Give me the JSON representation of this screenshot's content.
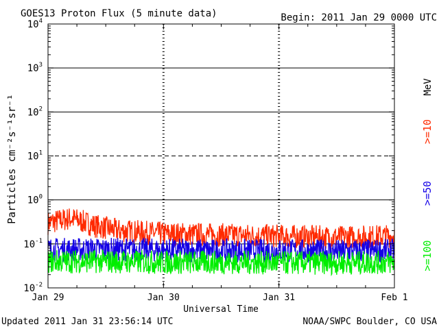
{
  "chart_data": {
    "type": "line",
    "title": "GOES13 Proton Flux (5 minute data)",
    "begin": "Begin: 2011 Jan 29 0000 UTC",
    "xlabel": "Universal Time",
    "ylabel": "Particles cm⁻²s⁻¹sr⁻¹",
    "yscale": "log",
    "ylim": [
      0.01,
      10000
    ],
    "yticks": [
      {
        "base": "10",
        "exp": "4"
      },
      {
        "base": "10",
        "exp": "3"
      },
      {
        "base": "10",
        "exp": "2"
      },
      {
        "base": "10",
        "exp": "1"
      },
      {
        "base": "10",
        "exp": "0"
      },
      {
        "base": "10",
        "exp": "-1"
      },
      {
        "base": "10",
        "exp": "-2"
      }
    ],
    "xlim_days": [
      0,
      3
    ],
    "xticks": [
      {
        "day": 0,
        "label": "Jan 29"
      },
      {
        "day": 1,
        "label": "Jan 30"
      },
      {
        "day": 2,
        "label": "Jan 31"
      },
      {
        "day": 3,
        "label": "Feb 1"
      }
    ],
    "threshold_lines": [
      {
        "value": 1000,
        "style": "solid"
      },
      {
        "value": 100,
        "style": "solid"
      },
      {
        "value": 10,
        "style": "dashed"
      },
      {
        "value": 1,
        "style": "solid"
      },
      {
        "value": 0.1,
        "style": "solid"
      }
    ],
    "unit_label": "MeV",
    "series": [
      {
        "name": ">=10",
        "color": "#ff2a00",
        "base": 0.17,
        "spread": 0.11,
        "peak_start": 0.35,
        "anchors": [
          [
            0,
            0.3
          ],
          [
            0.2,
            0.38
          ],
          [
            0.4,
            0.26
          ],
          [
            0.6,
            0.2
          ],
          [
            1.0,
            0.17
          ],
          [
            1.5,
            0.16
          ],
          [
            2.0,
            0.15
          ],
          [
            2.5,
            0.14
          ],
          [
            2.99,
            0.15
          ]
        ]
      },
      {
        "name": ">=50",
        "color": "#1400e6",
        "base": 0.07,
        "spread": 0.05,
        "anchors": [
          [
            0,
            0.075
          ],
          [
            0.5,
            0.075
          ],
          [
            1.0,
            0.072
          ],
          [
            1.5,
            0.07
          ],
          [
            2.0,
            0.07
          ],
          [
            2.5,
            0.068
          ],
          [
            2.99,
            0.07
          ]
        ]
      },
      {
        "name": ">=100",
        "color": "#00ee00",
        "base": 0.04,
        "spread": 0.03,
        "anchors": [
          [
            0,
            0.04
          ],
          [
            0.5,
            0.04
          ],
          [
            1.0,
            0.038
          ],
          [
            1.5,
            0.038
          ],
          [
            2.0,
            0.037
          ],
          [
            2.5,
            0.037
          ],
          [
            2.99,
            0.038
          ]
        ]
      }
    ]
  },
  "footer": {
    "updated": "Updated 2011 Jan 31 23:56:14 UTC",
    "source": "NOAA/SWPC Boulder, CO USA"
  }
}
